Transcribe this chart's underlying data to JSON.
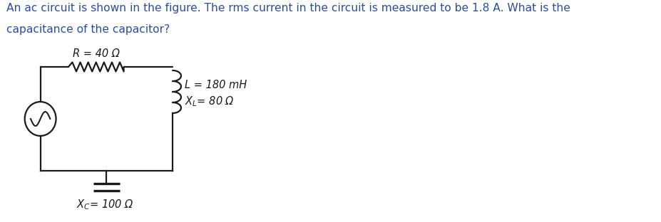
{
  "title_line1": "An ac circuit is shown in the figure. The rms current in the circuit is measured to be 1.8 A. What is the",
  "title_line2": "capacitance of the capacitor?",
  "title_color": "#2B4BA8",
  "title_fontsize": 11.2,
  "R_label": "R = 40 Ω",
  "L_label": "L = 180 mH",
  "XL_label_pre": "X",
  "XL_label_sub": "L",
  "XL_label_post": "= 80 Ω",
  "XC_label_pre": "X",
  "XC_label_sub": "C",
  "XC_label_post": "= 100 Ω",
  "bg_color": "#ffffff",
  "circuit_color": "#1a1a1a",
  "lw": 1.6
}
